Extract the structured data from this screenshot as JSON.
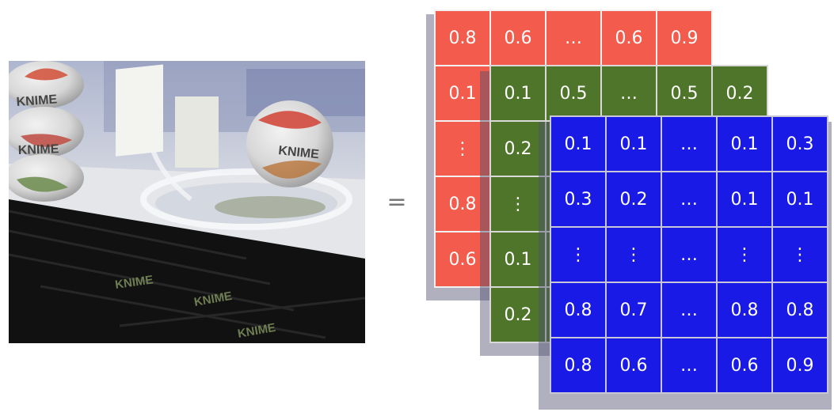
{
  "photo": {
    "logo_text": "KNIME"
  },
  "equals_sign": "=",
  "channels": [
    {
      "name": "red",
      "color": "#f35b4c",
      "rows": [
        [
          "0.8",
          "0.6",
          "…",
          "0.6",
          "0.9"
        ],
        [
          "0.1",
          "",
          "",
          "",
          ""
        ],
        [
          "⋮",
          "",
          "",
          "",
          ""
        ],
        [
          "0.8",
          "",
          "",
          "",
          ""
        ],
        [
          "0.6",
          "",
          "",
          "",
          ""
        ]
      ]
    },
    {
      "name": "green",
      "color": "#4e7529",
      "rows": [
        [
          "0.1",
          "0.5",
          "…",
          "0.5",
          "0.2"
        ],
        [
          "0.2",
          "",
          "",
          "",
          ""
        ],
        [
          "⋮",
          "",
          "",
          "",
          ""
        ],
        [
          "0.1",
          "",
          "",
          "",
          ""
        ],
        [
          "0.2",
          "",
          "",
          "",
          ""
        ]
      ]
    },
    {
      "name": "blue",
      "color": "#1a1ae6",
      "rows": [
        [
          "0.1",
          "0.1",
          "…",
          "0.1",
          "0.3"
        ],
        [
          "0.3",
          "0.2",
          "…",
          "0.1",
          "0.1"
        ],
        [
          "⋮",
          "⋮",
          "…",
          "⋮",
          "⋮"
        ],
        [
          "0.8",
          "0.7",
          "…",
          "0.8",
          "0.8"
        ],
        [
          "0.8",
          "0.6",
          "…",
          "0.6",
          "0.9"
        ]
      ]
    }
  ]
}
